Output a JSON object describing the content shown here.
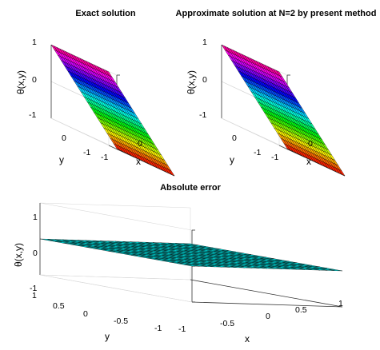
{
  "chart_data": [
    {
      "type": "surface",
      "title": "Exact solution",
      "xlabel": "x",
      "ylabel": "y",
      "zlabel": "θ(x,y)",
      "xlim": [
        -1,
        1
      ],
      "ylim": [
        -1,
        1
      ],
      "zlim": [
        -1,
        1
      ],
      "x_ticks": [
        "-1",
        "0"
      ],
      "y_ticks": [
        "0",
        "-1"
      ],
      "z_ticks": [
        "1",
        "0",
        "-1"
      ],
      "function": "theta = y (linear plane rising from -1 at y=-1 to 1 at y=1)",
      "samples": [
        [
          -1,
          -1
        ],
        [
          0,
          0
        ],
        [
          1,
          1
        ]
      ],
      "grid": true,
      "colormap": "hsv"
    },
    {
      "type": "surface",
      "title": "Approximate solution at N=2 by present method",
      "xlabel": "x",
      "ylabel": "y",
      "zlabel": "θ(x,y)",
      "xlim": [
        -1,
        1
      ],
      "ylim": [
        -1,
        1
      ],
      "zlim": [
        -1,
        1
      ],
      "x_ticks": [
        "-1",
        "0"
      ],
      "y_ticks": [
        "0",
        "-1"
      ],
      "z_ticks": [
        "1",
        "0",
        "-1"
      ],
      "function": "theta = y",
      "samples": [
        [
          -1,
          -1
        ],
        [
          0,
          0
        ],
        [
          1,
          1
        ]
      ],
      "grid": true,
      "colormap": "hsv"
    },
    {
      "type": "surface",
      "title": "Absolute error",
      "xlabel": "x",
      "ylabel": "y",
      "zlabel": "θ(x,y)",
      "xlim": [
        -1,
        1
      ],
      "ylim": [
        -1,
        1
      ],
      "zlim": [
        -1,
        1
      ],
      "x_ticks": [
        "-1",
        "-0.5",
        "0",
        "0.5",
        "1"
      ],
      "y_ticks": [
        "1",
        "0.5",
        "0",
        "-0.5",
        "-1"
      ],
      "z_ticks": [
        "1",
        "0",
        "-1"
      ],
      "function": "theta = 0 everywhere",
      "grid": true,
      "color": "#00e6e6"
    }
  ]
}
